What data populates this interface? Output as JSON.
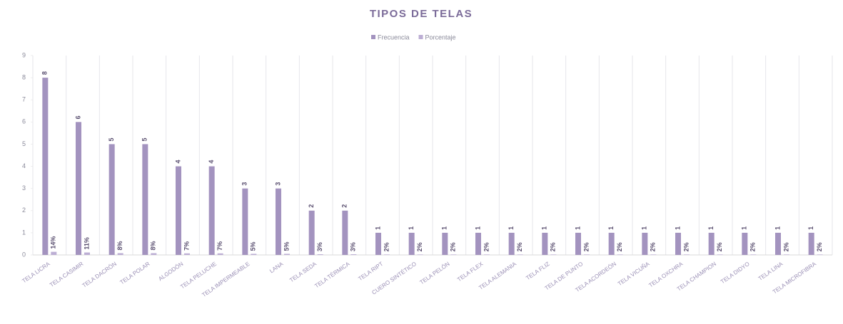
{
  "chart_data": {
    "type": "bar",
    "title": "TIPOS DE TELAS",
    "categories": [
      "TELA LICRA",
      "TELA CASIMIR",
      "TELA DACRÓN",
      "TELA POLAR",
      "ALGODÓN",
      "TELA PELUCHE",
      "TELA IMPERMEABLE",
      "LANA",
      "TELA SEDA",
      "TELA TÉRMICA",
      "TELA RIPT",
      "CUERO SINTÉTICO",
      "TELA PELÓN",
      "TELA FLEX",
      "TELA ALEMANIA",
      "TELA FLIZ",
      "TELA DE PUNTO",
      "TELA ACORDEÓN",
      "TELA VICUÑA",
      "TELA OXCHRA",
      "TELA CHAMPION",
      "TELA DIDYO",
      "TELA LINA",
      "TELA MICROFIBRA"
    ],
    "series": [
      {
        "name": "Frecuencia",
        "color": "#a393bf",
        "values": [
          8,
          6,
          5,
          5,
          4,
          4,
          3,
          3,
          2,
          2,
          1,
          1,
          1,
          1,
          1,
          1,
          1,
          1,
          1,
          1,
          1,
          1,
          1,
          1
        ]
      },
      {
        "name": "Porcentaje",
        "color": "#bcaed4",
        "values": [
          0.14,
          0.11,
          0.08,
          0.08,
          0.07,
          0.07,
          0.05,
          0.05,
          0.03,
          0.03,
          0.02,
          0.02,
          0.02,
          0.02,
          0.02,
          0.02,
          0.02,
          0.02,
          0.02,
          0.02,
          0.02,
          0.02,
          0.02,
          0.02
        ],
        "value_labels": [
          "14%",
          "11%",
          "8%",
          "8%",
          "7%",
          "7%",
          "5%",
          "5%",
          "3%",
          "3%",
          "2%",
          "2%",
          "2%",
          "2%",
          "2%",
          "2%",
          "2%",
          "2%",
          "2%",
          "2%",
          "2%",
          "2%",
          "2%",
          "2%"
        ]
      }
    ],
    "ylim": [
      0,
      9
    ],
    "yticks": [
      0,
      1,
      2,
      3,
      4,
      5,
      6,
      7,
      8,
      9
    ],
    "legend": "top"
  }
}
